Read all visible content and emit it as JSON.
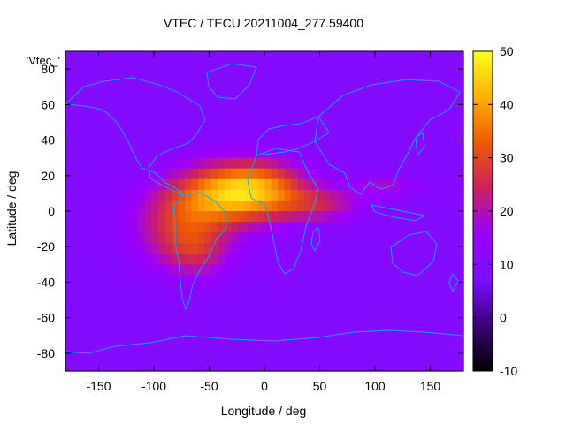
{
  "chart_data": {
    "type": "heatmap",
    "title": "VTEC / TECU 20211004_277.59400",
    "xlabel": "Longitude / deg",
    "ylabel": "Latitude / deg",
    "xlim": [
      -180,
      180
    ],
    "ylim": [
      -90,
      90
    ],
    "x_ticks": [
      -150,
      -100,
      -50,
      0,
      50,
      100,
      150
    ],
    "y_ticks": [
      -80,
      -60,
      -40,
      -20,
      0,
      20,
      40,
      60,
      80
    ],
    "colorbar": {
      "range": [
        -10,
        50
      ],
      "ticks": [
        -10,
        0,
        10,
        20,
        30,
        40,
        50
      ],
      "colors": [
        "#000000",
        "#3a0078",
        "#7a10ff",
        "#9a00ff",
        "#cc2060",
        "#ee5a00",
        "#ffb000",
        "#ffff20"
      ]
    },
    "legend_entry": "'Vtec_'",
    "background_level": 10,
    "features": [
      {
        "lon": -10,
        "lat": 12,
        "value": 40,
        "sx": 45,
        "sy": 16
      },
      {
        "lon": -55,
        "lat": 6,
        "value": 28,
        "sx": 45,
        "sy": 18
      },
      {
        "lon": -85,
        "lat": -12,
        "value": 20,
        "sx": 38,
        "sy": 20
      },
      {
        "lon": -60,
        "lat": -22,
        "value": 22,
        "sx": 30,
        "sy": 16
      },
      {
        "lon": 50,
        "lat": 4,
        "value": 22,
        "sx": 38,
        "sy": 10
      },
      {
        "lon": 110,
        "lat": 14,
        "value": 18,
        "sx": 30,
        "sy": 6
      },
      {
        "lon": 10,
        "lat": -30,
        "value": 12,
        "sx": 20,
        "sy": 12
      }
    ]
  }
}
